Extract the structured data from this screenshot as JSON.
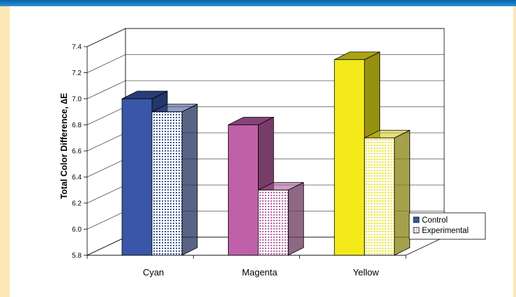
{
  "chart_data": {
    "type": "bar",
    "categories": [
      "Cyan",
      "Magenta",
      "Yellow"
    ],
    "series": [
      {
        "name": "Control",
        "values": [
          7.0,
          6.8,
          7.3
        ]
      },
      {
        "name": "Experimental",
        "values": [
          6.9,
          6.3,
          6.7
        ]
      }
    ],
    "ylabel": "Total Color Difference, ∆E",
    "ylim": [
      5.8,
      7.4
    ],
    "yticks": [
      "5.8",
      "6.0",
      "6.2",
      "6.4",
      "6.6",
      "6.8",
      "7.0",
      "7.2",
      "7.4"
    ],
    "grid": true,
    "legend_position": "right",
    "colors": {
      "Cyan": {
        "control": "#3a56a8",
        "experimental": "#3a56a8"
      },
      "Magenta": {
        "control": "#c060a8",
        "experimental": "#c060a8"
      },
      "Yellow": {
        "control": "#f4ea1a",
        "experimental": "#f4ea1a"
      }
    }
  }
}
